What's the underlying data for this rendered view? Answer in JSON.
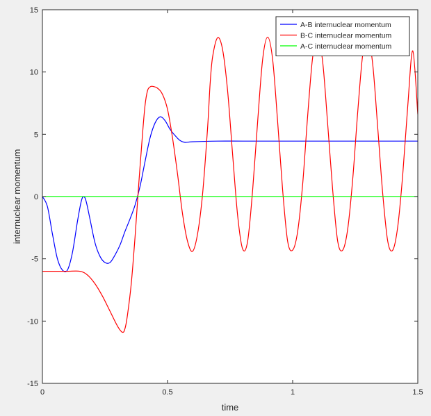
{
  "chart_data": {
    "type": "line",
    "title": "",
    "xlabel": "time",
    "ylabel": "internuclear momentum",
    "xlim": [
      0,
      1.5
    ],
    "ylim": [
      -15,
      15
    ],
    "xticks": [
      0,
      0.5,
      1,
      1.5
    ],
    "xtick_labels": [
      "0",
      "0.5",
      "1",
      "1.5"
    ],
    "yticks": [
      -15,
      -10,
      -5,
      0,
      5,
      10,
      15
    ],
    "ytick_labels": [
      "-15",
      "-10",
      "-5",
      "0",
      "5",
      "10",
      "15"
    ],
    "grid": false,
    "legend_position": "top-right",
    "series": [
      {
        "name": "A-B internuclear momentum",
        "color": "#0000ff",
        "x": [
          0,
          0.02,
          0.04,
          0.06,
          0.08,
          0.1,
          0.12,
          0.14,
          0.155,
          0.165,
          0.175,
          0.19,
          0.21,
          0.23,
          0.25,
          0.27,
          0.29,
          0.31,
          0.33,
          0.35,
          0.37,
          0.39,
          0.41,
          0.43,
          0.45,
          0.47,
          0.49,
          0.51,
          0.53,
          0.55,
          0.57,
          0.6,
          0.7,
          0.8,
          1.0,
          1.2,
          1.5
        ],
        "y": [
          0,
          -0.8,
          -3.0,
          -5.0,
          -5.9,
          -5.9,
          -4.5,
          -2.0,
          -0.4,
          0,
          -0.4,
          -1.8,
          -3.7,
          -4.8,
          -5.3,
          -5.3,
          -4.7,
          -3.9,
          -2.8,
          -1.8,
          -0.7,
          0.8,
          2.8,
          4.7,
          5.9,
          6.4,
          6.1,
          5.4,
          4.9,
          4.5,
          4.35,
          4.4,
          4.45,
          4.45,
          4.45,
          4.45,
          4.45
        ]
      },
      {
        "name": "B-C internuclear momentum",
        "color": "#ff0000",
        "x": [
          0,
          0.05,
          0.1,
          0.15,
          0.18,
          0.21,
          0.24,
          0.27,
          0.3,
          0.32,
          0.33,
          0.34,
          0.355,
          0.37,
          0.385,
          0.4,
          0.41,
          0.42,
          0.43,
          0.44,
          0.46,
          0.48,
          0.5,
          0.52,
          0.54,
          0.56,
          0.58,
          0.6,
          0.62,
          0.64,
          0.66,
          0.67,
          0.68,
          0.7,
          0.72,
          0.74,
          0.76,
          0.78,
          0.8,
          0.82,
          0.84,
          0.86,
          0.88,
          0.9,
          0.92,
          0.94,
          0.96,
          0.98,
          1.0,
          1.02,
          1.04,
          1.06,
          1.08,
          1.1,
          1.12,
          1.14,
          1.16,
          1.18,
          1.2,
          1.22,
          1.24,
          1.26,
          1.28,
          1.3,
          1.32,
          1.34,
          1.36,
          1.38,
          1.4,
          1.42,
          1.44,
          1.46,
          1.48,
          1.5
        ],
        "y": [
          -6.0,
          -6.0,
          -6.0,
          -6.0,
          -6.3,
          -7.0,
          -8.0,
          -9.2,
          -10.4,
          -10.9,
          -10.6,
          -9.5,
          -7.0,
          -3.3,
          1.0,
          5.0,
          7.3,
          8.5,
          8.8,
          8.85,
          8.7,
          8.2,
          7.0,
          4.7,
          1.8,
          -1.4,
          -3.6,
          -4.4,
          -3.0,
          0.2,
          5.5,
          9.0,
          11.2,
          12.75,
          11.8,
          8.5,
          3.4,
          -1.5,
          -4.2,
          -3.6,
          0.5,
          6.0,
          11.0,
          12.8,
          11.0,
          6.0,
          0.5,
          -3.6,
          -4.3,
          -2.8,
          1.0,
          6.5,
          11.2,
          12.8,
          10.8,
          5.8,
          0.5,
          -3.6,
          -4.3,
          -2.6,
          1.4,
          6.8,
          11.4,
          12.8,
          10.6,
          5.5,
          0.2,
          -3.6,
          -4.3,
          -2.4,
          1.8,
          7.3,
          11.7,
          6.6
        ]
      },
      {
        "name": "A-C internuclear momentum",
        "color": "#00ff00",
        "x": [
          0,
          1.5
        ],
        "y": [
          0,
          0
        ]
      }
    ]
  }
}
